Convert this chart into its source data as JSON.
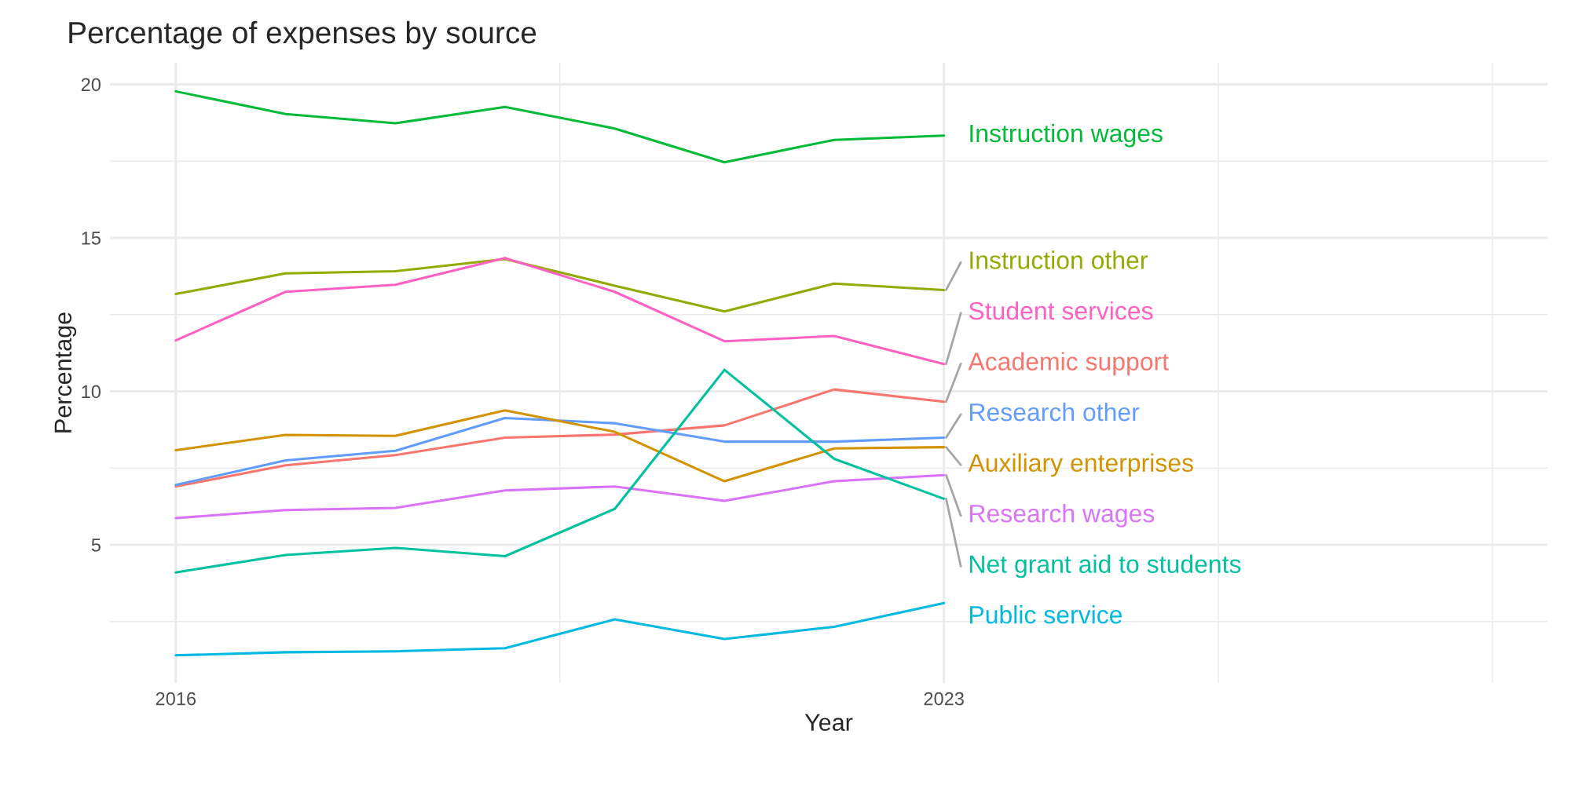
{
  "chart_data": {
    "type": "line",
    "title": "Percentage of expenses by source",
    "xlabel": "Year",
    "ylabel": "Percentage",
    "x": [
      2016,
      2017,
      2018,
      2019,
      2020,
      2021,
      2022,
      2023
    ],
    "series": [
      {
        "name": "Instruction wages",
        "color": "#00BA38",
        "values": [
          19.77,
          19.03,
          18.73,
          19.26,
          18.56,
          17.46,
          18.19,
          18.33
        ]
      },
      {
        "name": "Instruction other",
        "color": "#93AA00",
        "values": [
          13.17,
          13.84,
          13.91,
          14.31,
          13.44,
          12.6,
          13.51,
          13.3
        ]
      },
      {
        "name": "Student services",
        "color": "#FF61C3",
        "values": [
          11.66,
          13.24,
          13.47,
          14.34,
          13.24,
          11.63,
          11.8,
          10.89
        ]
      },
      {
        "name": "Academic support",
        "color": "#F8766D",
        "values": [
          6.9,
          7.59,
          7.92,
          8.49,
          8.59,
          8.89,
          10.06,
          9.66
        ]
      },
      {
        "name": "Research other",
        "color": "#619CFF",
        "values": [
          6.95,
          7.75,
          8.06,
          9.13,
          8.96,
          8.36,
          8.36,
          8.49
        ]
      },
      {
        "name": "Auxiliary enterprises",
        "color": "#D39200",
        "values": [
          8.08,
          8.58,
          8.55,
          9.38,
          8.68,
          7.07,
          8.14,
          8.18
        ]
      },
      {
        "name": "Research wages",
        "color": "#DB72FB",
        "values": [
          5.87,
          6.13,
          6.2,
          6.77,
          6.9,
          6.43,
          7.07,
          7.27
        ]
      },
      {
        "name": "Net grant aid to students",
        "color": "#00C19F",
        "values": [
          4.1,
          4.67,
          4.9,
          4.63,
          6.17,
          10.7,
          7.8,
          6.5
        ]
      },
      {
        "name": "Public service",
        "color": "#00B9E3",
        "values": [
          1.4,
          1.5,
          1.53,
          1.63,
          2.57,
          1.93,
          2.33,
          3.1
        ]
      }
    ],
    "xlim": [
      2015.4,
      2028.5
    ],
    "ylim": [
      0.5,
      20.7
    ],
    "xticks": [
      2016,
      {
        "value": 2019.5,
        "label": null
      },
      2023,
      {
        "value": 2025.5,
        "label": null
      },
      {
        "value": 2028,
        "label": null
      }
    ],
    "yticks": [
      {
        "value": 2.5,
        "label": null
      },
      5,
      {
        "value": 7.5,
        "label": null
      },
      10,
      {
        "value": 12.5,
        "label": null
      },
      15,
      {
        "value": 17.5,
        "label": null
      },
      20
    ],
    "grid": true,
    "line_style": "solid",
    "marker": "none"
  }
}
